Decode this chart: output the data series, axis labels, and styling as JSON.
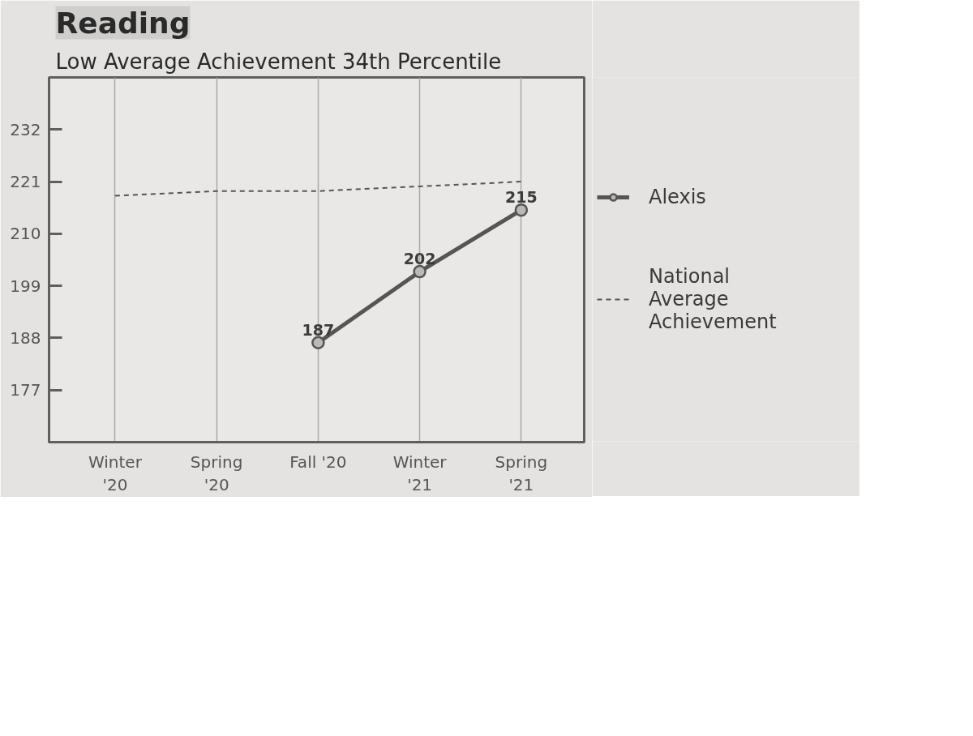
{
  "chart_data": {
    "type": "line",
    "title": "Reading",
    "subtitle": "Low Average Achievement 34th Percentile",
    "categories": [
      "Winter '20",
      "Spring '20",
      "Fall '20",
      "Winter '21",
      "Spring '21"
    ],
    "series": [
      {
        "name": "Alexis",
        "color": "#555555",
        "values": [
          null,
          null,
          187,
          202,
          215
        ],
        "marker": "circle",
        "line_style": "solid",
        "value_labels": [
          null,
          null,
          "187",
          "202",
          "215"
        ]
      },
      {
        "name": "National Average Achievement",
        "color": "#555555",
        "values": [
          218,
          219,
          219,
          220,
          221
        ],
        "marker": "none",
        "line_style": "dashed"
      }
    ],
    "ylim": [
      166,
      243
    ],
    "yticks": [
      177,
      188,
      199,
      210,
      221,
      232
    ],
    "grid": "x",
    "legend": "right"
  }
}
